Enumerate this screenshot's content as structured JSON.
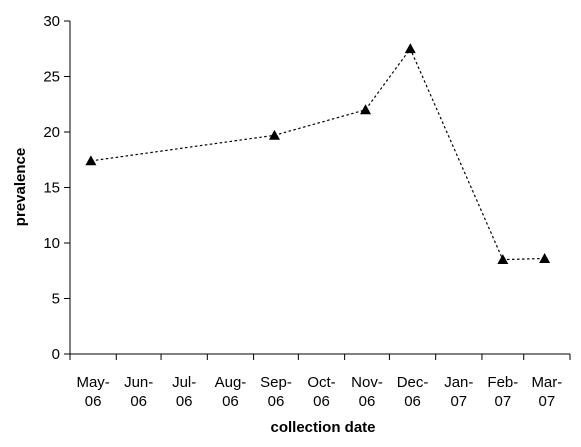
{
  "chart_data": {
    "type": "line",
    "title": "",
    "xlabel": "collection date",
    "ylabel": "prevalence",
    "ylim": [
      0,
      30
    ],
    "yticks": [
      0,
      5,
      10,
      15,
      20,
      25,
      30
    ],
    "ytick_labels": [
      "0",
      "5",
      "10",
      "15",
      "20",
      "25",
      "30"
    ],
    "categories": [
      "May-\n06",
      "Jun-\n06",
      "Jul-\n06",
      "Aug-\n06",
      "Sep-\n06",
      "Oct-\n06",
      "Nov-\n06",
      "Dec-\n06",
      "Jan-\n07",
      "Feb-\n07",
      "Mar-\n07"
    ],
    "series": [
      {
        "x": [
          "2006-05-15",
          "2006-09-15",
          "2006-11-15",
          "2006-12-15",
          "2007-02-15",
          "2007-03-15"
        ],
        "values": [
          17.4,
          19.7,
          22.0,
          27.5,
          8.5,
          8.6
        ],
        "marker": "triangle",
        "line_style": "dotted",
        "color": "#000000"
      }
    ],
    "grid": false,
    "legend": "none"
  }
}
